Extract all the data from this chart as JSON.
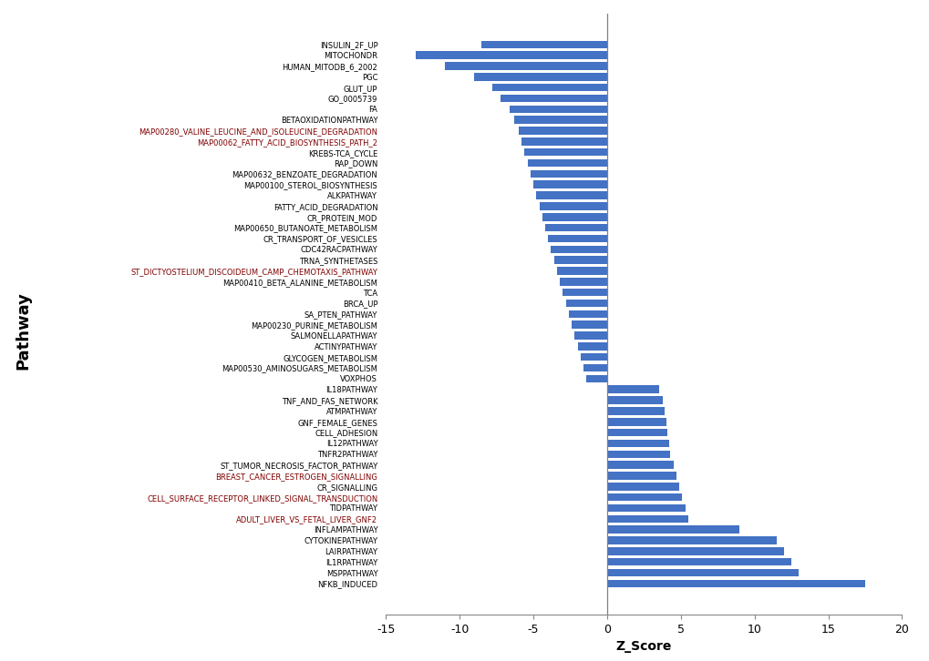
{
  "pathways": [
    "INSULIN_2F_UP",
    "MITOCHONDR",
    "HUMAN_MITODB_6_2002",
    "PGC",
    "GLUT_UP",
    "GO_0005739",
    "FA",
    "BETAOXIDATIONPATHWAY",
    "MAP00280_VALINE_LEUCINE_AND_ISOLEUCINE_DEGRADATION",
    "MAP00062_FATTY_ACID_BIOSYNTHESIS_PATH_2",
    "KREBS-TCA_CYCLE",
    "RAP_DOWN",
    "MAP00632_BENZOATE_DEGRADATION",
    "MAP00100_STEROL_BIOSYNTHESIS",
    "ALKPATHWAY",
    "FATTY_ACID_DEGRADATION",
    "CR_PROTEIN_MOD",
    "MAP00650_BUTANOATE_METABOLISM",
    "CR_TRANSPORT_OF_VESICLES",
    "CDC42RACPATHWAY",
    "TRNA_SYNTHETASES",
    "ST_DICTYOSTELIUM_DISCOIDEUM_CAMP_CHEMOTAXIS_PATHWAY",
    "MAP00410_BETA_ALANINE_METABOLISM",
    "TCA",
    "BRCA_UP",
    "SA_PTEN_PATHWAY",
    "MAP00230_PURINE_METABOLISM",
    "SALMONELLAPATHWAY",
    "ACTINYPATHWAY",
    "GLYCOGEN_METABOLISM",
    "MAP00530_AMINOSUGARS_METABOLISM",
    "VOXPHOS",
    "IL18PATHWAY",
    "TNF_AND_FAS_NETWORK",
    "ATMPATHWAY",
    "GNF_FEMALE_GENES",
    "CELL_ADHESION",
    "IL12PATHWAY",
    "TNFR2PATHWAY",
    "ST_TUMOR_NECROSIS_FACTOR_PATHWAY",
    "BREAST_CANCER_ESTROGEN_SIGNALLING",
    "CR_SIGNALLING",
    "CELL_SURFACE_RECEPTOR_LINKED_SIGNAL_TRANSDUCTION",
    "TIDPATHWAY",
    "ADULT_LIVER_VS_FETAL_LIVER_GNF2",
    "INFLAMPATHWAY",
    "CYTOKINEPATHWAY",
    "LAIRPATHWAY",
    "IL1RPATHWAY",
    "MSPPATHWAY",
    "NFKB_INDUCED"
  ],
  "z_scores": [
    -8.5,
    -13.0,
    -11.0,
    -9.0,
    -7.8,
    -7.2,
    -6.6,
    -6.3,
    -6.0,
    -5.8,
    -5.6,
    -5.4,
    -5.2,
    -5.0,
    -4.8,
    -4.6,
    -4.4,
    -4.2,
    -4.0,
    -3.8,
    -3.6,
    -3.4,
    -3.2,
    -3.0,
    -2.8,
    -2.6,
    -2.4,
    -2.2,
    -2.0,
    -1.8,
    -1.6,
    -1.4,
    3.5,
    3.8,
    3.9,
    4.0,
    4.1,
    4.2,
    4.3,
    4.5,
    4.7,
    4.9,
    5.1,
    5.3,
    5.5,
    9.0,
    11.5,
    12.0,
    12.5,
    13.0,
    17.5
  ],
  "bar_color": "#4472C4",
  "xlabel": "Z_Score",
  "ylabel": "Pathway",
  "xlim": [
    -15,
    20
  ],
  "xticks": [
    -15,
    -10,
    -5,
    0,
    5,
    10,
    15,
    20
  ],
  "background_color": "#ffffff",
  "special_red_labels": [
    "MAP00280_VALINE_LEUCINE_AND_ISOLEUCINE_DEGRADATION",
    "MAP00062_FATTY_ACID_BIOSYNTHESIS_PATH_2",
    "ST_DICTYOSTELIUM_DISCOIDEUM_CAMP_CHEMOTAXIS_PATHWAY",
    "BREAST_CANCER_ESTROGEN_SIGNALLING",
    "CELL_SURFACE_RECEPTOR_LINKED_SIGNAL_TRANSDUCTION",
    "ADULT_LIVER_VS_FETAL_LIVER_GNF2"
  ],
  "label_fontsize": 6.0,
  "axis_label_fontsize": 10,
  "tick_fontsize": 9,
  "bar_height": 0.72
}
